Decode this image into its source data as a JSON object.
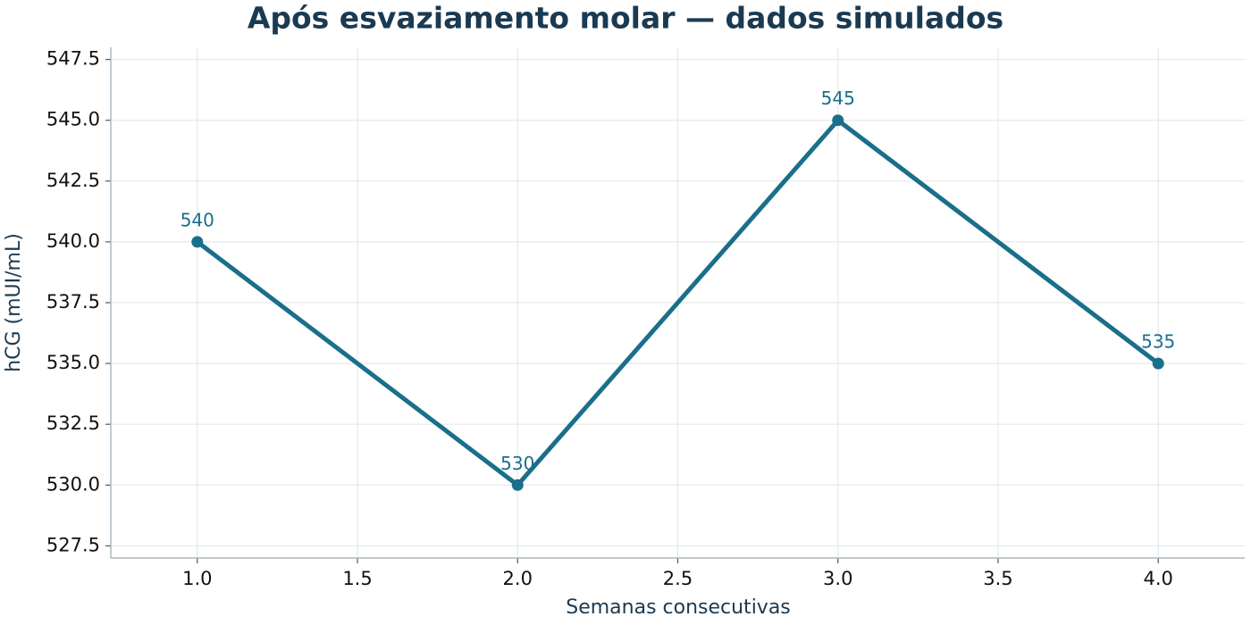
{
  "chart_data": {
    "type": "line",
    "title": "Após esvaziamento molar — dados simulados",
    "x_label": "Semanas consecutivas",
    "y_label": "hCG (mUI/mL)",
    "x": [
      1,
      2,
      3,
      4
    ],
    "values": [
      540,
      530,
      545,
      535
    ],
    "color": "#1a6f8a",
    "xlim": [
      0.73,
      4.27
    ],
    "ylim": [
      527.0,
      548.0
    ],
    "xticks": [
      {
        "value": 1,
        "label": "1.0"
      },
      1.5,
      {
        "value": 2,
        "label": "2.0"
      },
      2.5,
      {
        "value": 3,
        "label": "3.0"
      },
      3.5,
      {
        "value": 4,
        "label": "4.0"
      }
    ],
    "yticks": [
      527.5,
      {
        "value": 530,
        "label": "530.0"
      },
      532.5,
      {
        "value": 535,
        "label": "535.0"
      },
      537.5,
      {
        "value": 540,
        "label": "540.0"
      },
      542.5,
      {
        "value": 545,
        "label": "545.0"
      },
      547.5
    ],
    "grid": true
  }
}
